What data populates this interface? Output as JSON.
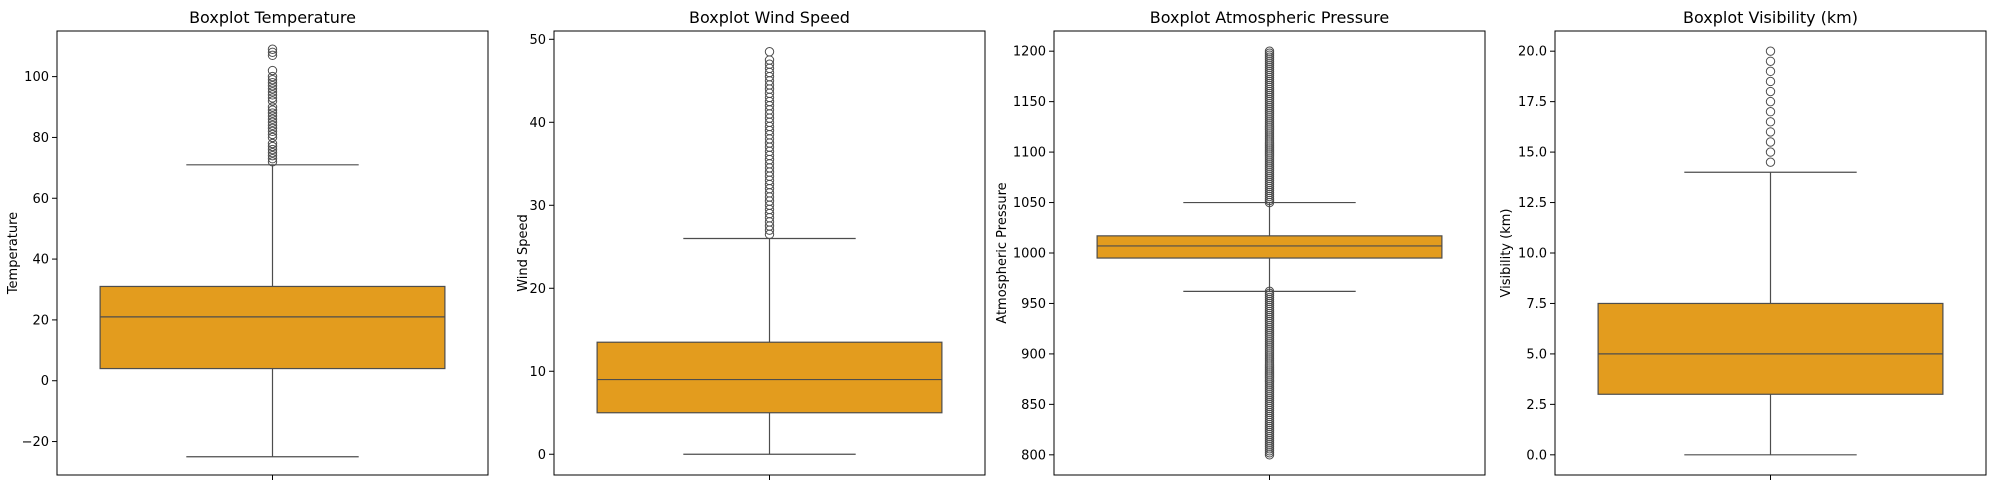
{
  "chart_data": [
    {
      "type": "box",
      "title": "Boxplot Temperature",
      "xlabel": "",
      "ylabel": "Temperature",
      "ylim": [
        -31,
        115
      ],
      "yticks": [
        -20,
        0,
        20,
        40,
        60,
        80,
        100
      ],
      "ytick_labels": [
        "−20",
        "0",
        "20",
        "40",
        "60",
        "80",
        "100"
      ],
      "stats": {
        "whisker_low": -25,
        "q1": 4,
        "median": 21,
        "q3": 31,
        "whisker_high": 71
      },
      "outliers": [
        72,
        73,
        74,
        75,
        76,
        77,
        78,
        80,
        81,
        82,
        83,
        84,
        85,
        86,
        87,
        88,
        89,
        90,
        92,
        93,
        94,
        95,
        96,
        97,
        98,
        99,
        100,
        102,
        107,
        108,
        109
      ],
      "box_color": "#e39c1e",
      "line_color": "#4d4d4d"
    },
    {
      "type": "box",
      "title": "Boxplot Wind Speed",
      "xlabel": "",
      "ylabel": "Wind Speed",
      "ylim": [
        -2.5,
        51
      ],
      "yticks": [
        0,
        10,
        20,
        30,
        40,
        50
      ],
      "ytick_labels": [
        "0",
        "10",
        "20",
        "30",
        "40",
        "50"
      ],
      "stats": {
        "whisker_low": 0,
        "q1": 5,
        "median": 9,
        "q3": 13.5,
        "whisker_high": 26
      },
      "outliers": [
        26.5,
        27,
        27.5,
        28,
        28.5,
        29,
        29.5,
        30,
        30.5,
        31,
        31.5,
        32,
        32.5,
        33,
        33.5,
        34,
        34.5,
        35,
        35.5,
        36,
        36.5,
        37,
        37.5,
        38,
        38.5,
        39,
        39.5,
        40,
        40.5,
        41,
        41.5,
        42,
        42.5,
        43,
        43.5,
        44,
        44.5,
        45,
        45.5,
        46,
        46.5,
        47,
        47.5,
        48.5
      ],
      "box_color": "#e39c1e",
      "line_color": "#4d4d4d"
    },
    {
      "type": "box",
      "title": "Boxplot Atmospheric Pressure",
      "xlabel": "",
      "ylabel": "Atmospheric Pressure",
      "ylim": [
        780,
        1220
      ],
      "yticks": [
        800,
        850,
        900,
        950,
        1000,
        1050,
        1100,
        1150,
        1200
      ],
      "ytick_labels": [
        "800",
        "850",
        "900",
        "950",
        "1000",
        "1050",
        "1100",
        "1150",
        "1200"
      ],
      "stats": {
        "whisker_low": 962,
        "q1": 995,
        "median": 1007,
        "q3": 1017,
        "whisker_high": 1050
      },
      "outliers_dense_ranges": [
        [
          800,
          962
        ],
        [
          1050,
          1200
        ]
      ],
      "box_color": "#e39c1e",
      "line_color": "#4d4d4d"
    },
    {
      "type": "box",
      "title": "Boxplot Visibility (km)",
      "xlabel": "",
      "ylabel": "Visibility (km)",
      "ylim": [
        -1.0,
        21.0
      ],
      "yticks": [
        0,
        2.5,
        5,
        7.5,
        10,
        12.5,
        15,
        17.5,
        20
      ],
      "ytick_labels": [
        "0.0",
        "2.5",
        "5.0",
        "7.5",
        "10.0",
        "12.5",
        "15.0",
        "17.5",
        "20.0"
      ],
      "stats": {
        "whisker_low": 0,
        "q1": 3,
        "median": 5,
        "q3": 7.5,
        "whisker_high": 14
      },
      "outliers": [
        14.5,
        15,
        15.5,
        16,
        16.5,
        17,
        17.5,
        18,
        18.5,
        19,
        19.5,
        20
      ],
      "box_color": "#e39c1e",
      "line_color": "#4d4d4d"
    }
  ]
}
